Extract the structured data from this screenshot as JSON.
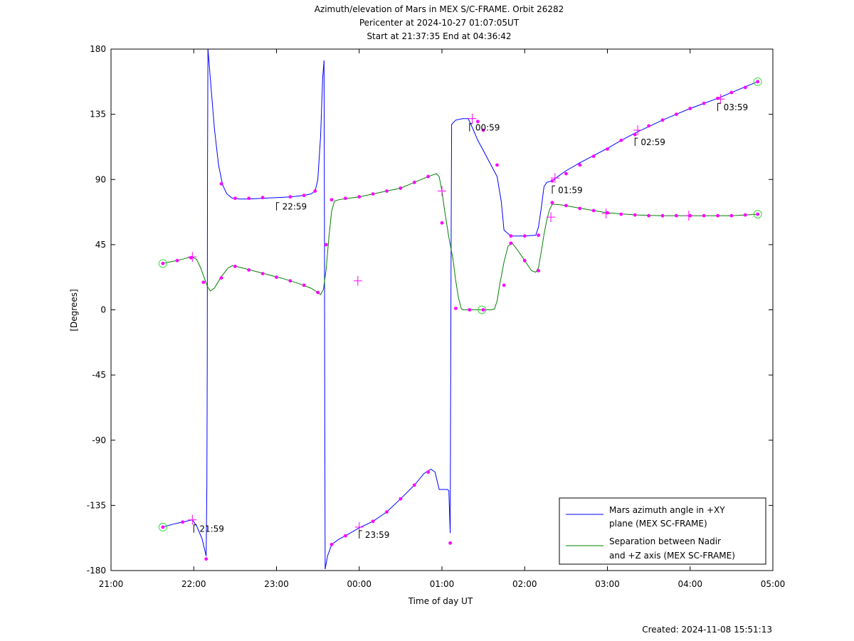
{
  "title_lines": [
    "Azimuth/elevation of Mars in MEX S/C-FRAME.  Orbit 26282",
    "Pericenter at 2024-10-27 01:07:05UT",
    "Start at 21:37:35 End at 04:36:42"
  ],
  "created": "Created: 2024-11-08 15:51:13",
  "chart_data": {
    "type": "line",
    "xlabel": "Time of day UT",
    "ylabel": "[Degrees]",
    "xlim": [
      0,
      480
    ],
    "ylim": [
      -180,
      180
    ],
    "xticks": [
      0,
      60,
      120,
      180,
      240,
      300,
      360,
      420,
      480
    ],
    "xtick_labels": [
      "21:00",
      "22:00",
      "23:00",
      "00:00",
      "01:00",
      "02:00",
      "03:00",
      "04:00",
      "05:00"
    ],
    "yticks": [
      180,
      135,
      90,
      45,
      0,
      -45,
      -90,
      -135,
      -180
    ],
    "ytick_labels": [
      "180",
      "135",
      "90",
      "45",
      "0",
      "-45",
      "-90",
      "-135",
      "-180"
    ],
    "legend_position": "bottom-right",
    "series": [
      {
        "name": "Mars azimuth angle in +XY plane (MEX SC-FRAME)",
        "legend_lines": [
          "Mars azimuth angle in +XY",
          "plane (MEX SC-FRAME)"
        ],
        "color": "#0000ff",
        "segments": [
          [
            [
              37.6,
              -150
            ],
            [
              45,
              -148
            ],
            [
              52,
              -146.5
            ],
            [
              59,
              -145
            ],
            [
              62,
              -149
            ],
            [
              66,
              -158
            ],
            [
              69,
              -170
            ]
          ],
          [
            [
              69,
              -170
            ],
            [
              69.5,
              -120
            ],
            [
              69.8,
              -40
            ],
            [
              70,
              100
            ],
            [
              70.3,
              180
            ]
          ],
          [
            [
              70.3,
              180
            ],
            [
              72,
              160
            ],
            [
              75,
              125
            ],
            [
              78,
              100
            ],
            [
              81,
              86
            ],
            [
              84,
              80
            ],
            [
              88,
              77
            ],
            [
              93,
              76.5
            ],
            [
              100,
              76.5
            ],
            [
              110,
              77
            ],
            [
              120,
              77.5
            ],
            [
              130,
              78
            ],
            [
              140,
              79
            ],
            [
              145,
              80
            ],
            [
              148,
              82
            ],
            [
              150,
              90
            ],
            [
              152,
              120
            ],
            [
              153.5,
              160
            ],
            [
              154.5,
              172
            ]
          ],
          [
            [
              154.5,
              172
            ],
            [
              154.8,
              60
            ],
            [
              155,
              -60
            ],
            [
              155.3,
              -179
            ]
          ],
          [
            [
              155.3,
              -179
            ],
            [
              157,
              -170
            ],
            [
              160,
              -162
            ],
            [
              165,
              -158.5
            ],
            [
              170,
              -156
            ],
            [
              180,
              -150.5
            ],
            [
              190,
              -146
            ],
            [
              200,
              -139.5
            ],
            [
              210,
              -130.5
            ],
            [
              220,
              -121
            ],
            [
              227,
              -113
            ],
            [
              232,
              -110
            ],
            [
              235,
              -112
            ],
            [
              238,
              -124
            ],
            [
              244,
              -124
            ],
            [
              245,
              -125
            ],
            [
              246,
              -154
            ]
          ],
          [
            [
              246,
              -154
            ],
            [
              246.3,
              -60
            ],
            [
              246.7,
              60
            ],
            [
              247,
              128
            ]
          ],
          [
            [
              247,
              128
            ],
            [
              250,
              131
            ],
            [
              255,
              132
            ],
            [
              259,
              132
            ],
            [
              262,
              126
            ],
            [
              266,
              117
            ],
            [
              270,
              110
            ],
            [
              275,
              101
            ],
            [
              280,
              92
            ],
            [
              283,
              75
            ],
            [
              285,
              55
            ],
            [
              290,
              51
            ],
            [
              300,
              51
            ],
            [
              308,
              51.5
            ],
            [
              310,
              57
            ],
            [
              312,
              70
            ],
            [
              314,
              85
            ],
            [
              316,
              88
            ],
            [
              320,
              89
            ],
            [
              324,
              92
            ],
            [
              330,
              96
            ],
            [
              340,
              101.5
            ],
            [
              350,
              106.5
            ],
            [
              360,
              111.5
            ],
            [
              370,
              117
            ],
            [
              380,
              122
            ],
            [
              390,
              126.5
            ],
            [
              400,
              131
            ],
            [
              410,
              135
            ],
            [
              420,
              139
            ],
            [
              430,
              142.5
            ],
            [
              440,
              146
            ],
            [
              450,
              150
            ],
            [
              460,
              154
            ],
            [
              469,
              157.5
            ]
          ]
        ],
        "markers": [
          [
            37.6,
            -150
          ],
          [
            52,
            -146.5
          ],
          [
            69,
            -172
          ],
          [
            80,
            87
          ],
          [
            90,
            77
          ],
          [
            100,
            77
          ],
          [
            110,
            77.5
          ],
          [
            130,
            78
          ],
          [
            140,
            79
          ],
          [
            148,
            82
          ],
          [
            156,
            45
          ],
          [
            160,
            -162
          ],
          [
            170,
            -156
          ],
          [
            190,
            -146
          ],
          [
            200,
            -139.5
          ],
          [
            210,
            -130.5
          ],
          [
            220,
            -121
          ],
          [
            230,
            -112
          ],
          [
            246,
            -161
          ],
          [
            266,
            130
          ],
          [
            270,
            124
          ],
          [
            280,
            100
          ],
          [
            290,
            51
          ],
          [
            300,
            51
          ],
          [
            310,
            51.5
          ],
          [
            320,
            89
          ],
          [
            330,
            94
          ],
          [
            340,
            100
          ],
          [
            350,
            106
          ],
          [
            360,
            111
          ],
          [
            370,
            117
          ],
          [
            380,
            121
          ],
          [
            390,
            127
          ],
          [
            400,
            131
          ],
          [
            410,
            135
          ],
          [
            420,
            139
          ],
          [
            430,
            142.5
          ],
          [
            440,
            146
          ],
          [
            450,
            150
          ],
          [
            460,
            153.5
          ],
          [
            469,
            157.5
          ]
        ],
        "crosses": [
          [
            59,
            -145
          ],
          [
            180,
            -150
          ],
          [
            262,
            132
          ],
          [
            322,
            91
          ],
          [
            382,
            124
          ],
          [
            442,
            145.5
          ]
        ],
        "circles": [
          [
            37.6,
            -150
          ],
          [
            469,
            157.5
          ]
        ]
      },
      {
        "name": "Separation between Nadir and +Z axis (MEX SC-FRAME)",
        "legend_lines": [
          "Separation between Nadir",
          "and +Z axis (MEX SC-FRAME)"
        ],
        "color": "#008000",
        "segments": [
          [
            [
              37.6,
              32
            ],
            [
              45,
              33.5
            ],
            [
              52,
              35
            ],
            [
              58,
              36.5
            ],
            [
              62,
              35
            ],
            [
              65,
              29
            ],
            [
              68,
              21
            ],
            [
              70,
              16
            ],
            [
              72,
              13
            ],
            [
              75,
              15
            ],
            [
              80,
              23
            ],
            [
              85,
              29
            ],
            [
              88,
              30.5
            ],
            [
              95,
              29
            ],
            [
              105,
              26.5
            ],
            [
              115,
              24
            ],
            [
              125,
              21.5
            ],
            [
              135,
              18.5
            ],
            [
              145,
              15
            ],
            [
              150,
              12
            ],
            [
              152,
              10.5
            ],
            [
              154,
              14
            ],
            [
              156,
              28
            ],
            [
              158,
              50
            ],
            [
              160,
              68
            ],
            [
              162,
              75
            ],
            [
              165,
              76
            ],
            [
              172,
              77
            ],
            [
              180,
              78
            ],
            [
              190,
              80
            ],
            [
              200,
              82
            ],
            [
              210,
              84
            ],
            [
              220,
              88
            ],
            [
              230,
              92
            ],
            [
              236,
              94
            ],
            [
              238,
              92
            ],
            [
              240,
              82
            ],
            [
              242,
              68
            ],
            [
              245,
              50
            ],
            [
              248,
              35
            ],
            [
              250,
              20
            ],
            [
              252,
              8
            ],
            [
              254,
              1
            ],
            [
              255,
              0
            ],
            [
              270,
              0
            ],
            [
              275,
              0
            ],
            [
              278,
              0.5
            ],
            [
              280,
              6
            ],
            [
              282,
              18
            ],
            [
              285,
              33
            ],
            [
              288,
              44
            ],
            [
              291,
              46
            ],
            [
              295,
              41
            ],
            [
              300,
              34
            ],
            [
              305,
              27
            ],
            [
              308,
              26
            ],
            [
              310,
              29
            ],
            [
              312,
              40
            ],
            [
              314,
              52
            ],
            [
              316,
              62
            ],
            [
              318,
              69
            ],
            [
              320,
              73
            ],
            [
              326,
              72.5
            ],
            [
              335,
              71
            ],
            [
              350,
              68.5
            ],
            [
              360,
              67
            ],
            [
              380,
              65.5
            ],
            [
              400,
              65
            ],
            [
              420,
              65
            ],
            [
              440,
              65
            ],
            [
              450,
              65
            ],
            [
              460,
              65.5
            ],
            [
              469,
              66
            ]
          ]
        ],
        "markers": [
          [
            37.6,
            32
          ],
          [
            48,
            34
          ],
          [
            58,
            36
          ],
          [
            67,
            19
          ],
          [
            80,
            22
          ],
          [
            90,
            30
          ],
          [
            100,
            27.5
          ],
          [
            110,
            25
          ],
          [
            120,
            22.5
          ],
          [
            130,
            20
          ],
          [
            140,
            17
          ],
          [
            150,
            12
          ],
          [
            160,
            76
          ],
          [
            170,
            77
          ],
          [
            180,
            78
          ],
          [
            190,
            80
          ],
          [
            200,
            82
          ],
          [
            210,
            84
          ],
          [
            220,
            88
          ],
          [
            230,
            92
          ],
          [
            240,
            60
          ],
          [
            250,
            1
          ],
          [
            260,
            0
          ],
          [
            270,
            0
          ],
          [
            285,
            17
          ],
          [
            290,
            46
          ],
          [
            300,
            34
          ],
          [
            310,
            27
          ],
          [
            320,
            74
          ],
          [
            330,
            72
          ],
          [
            340,
            70
          ],
          [
            350,
            68.5
          ],
          [
            360,
            67
          ],
          [
            370,
            66
          ],
          [
            380,
            65.5
          ],
          [
            390,
            65
          ],
          [
            400,
            65
          ],
          [
            410,
            65
          ],
          [
            420,
            65
          ],
          [
            430,
            65
          ],
          [
            440,
            65
          ],
          [
            450,
            65
          ],
          [
            460,
            65.5
          ],
          [
            469,
            66
          ]
        ],
        "crosses": [
          [
            59,
            36.5
          ],
          [
            179,
            20
          ],
          [
            240,
            82
          ],
          [
            319,
            64
          ],
          [
            359,
            66.5
          ],
          [
            419,
            65
          ]
        ],
        "circles": [
          [
            37.6,
            32
          ],
          [
            269,
            0
          ],
          [
            469,
            66
          ]
        ]
      }
    ],
    "annotations": [
      {
        "text": "21:59",
        "x": 59,
        "y": -145
      },
      {
        "text": "22:59",
        "x": 119,
        "y": 77.5
      },
      {
        "text": "23:59",
        "x": 179,
        "y": -149
      },
      {
        "text": "00:59",
        "x": 259,
        "y": 132
      },
      {
        "text": "01:59",
        "x": 319,
        "y": 89
      },
      {
        "text": "02:59",
        "x": 379,
        "y": 122
      },
      {
        "text": "03:59",
        "x": 439,
        "y": 146
      }
    ]
  }
}
